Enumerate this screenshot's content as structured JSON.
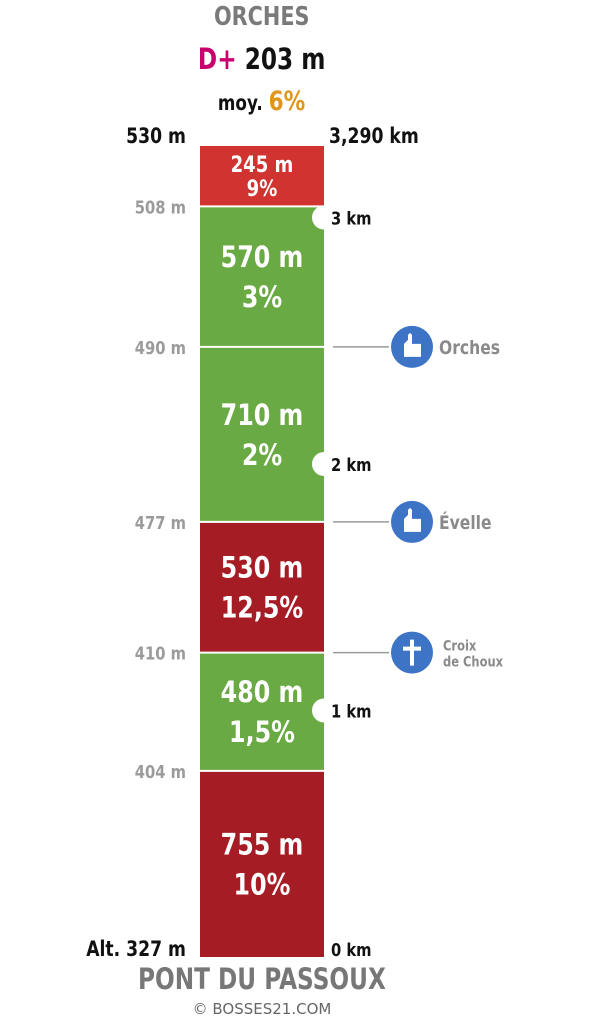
{
  "header": {
    "title": "ORCHES",
    "gain_prefix": "D+",
    "gain_value": "203 m",
    "avg_prefix": "moy.",
    "avg_value": "6%"
  },
  "footer": {
    "start_name": "PONT DU PASSOUX",
    "copyright": "© BOSSES21.COM"
  },
  "colors": {
    "red_top": "#d03330",
    "red": "#a51c24",
    "green": "#6aaa44",
    "poi_blue": "#3d74c6",
    "alt_grey": "#9b9b9b"
  },
  "chart_data": {
    "type": "bar",
    "total_distance_label": "3,290 km",
    "top_altitude_label": "530 m",
    "base_altitude_label": "Alt. 327 m",
    "segments": [
      {
        "length_label": "755 m",
        "grade_label": "10%",
        "length_m": 755,
        "grade_pct": 10,
        "color": "red"
      },
      {
        "length_label": "480 m",
        "grade_label": "1,5%",
        "length_m": 480,
        "grade_pct": 1.5,
        "color": "green"
      },
      {
        "length_label": "530 m",
        "grade_label": "12,5%",
        "length_m": 530,
        "grade_pct": 12.5,
        "color": "red"
      },
      {
        "length_label": "710 m",
        "grade_label": "2%",
        "length_m": 710,
        "grade_pct": 2,
        "color": "green"
      },
      {
        "length_label": "570 m",
        "grade_label": "3%",
        "length_m": 570,
        "grade_pct": 3,
        "color": "green"
      },
      {
        "length_label": "245 m",
        "grade_label": "9%",
        "length_m": 245,
        "grade_pct": 9,
        "color": "red_top"
      }
    ],
    "boundary_altitudes": [
      "404 m",
      "410 m",
      "477 m",
      "490 m",
      "508 m"
    ],
    "km_markers": [
      {
        "label": "0 km",
        "km": 0,
        "style": "plain"
      },
      {
        "label": "1 km",
        "km": 1,
        "style": "notch"
      },
      {
        "label": "2 km",
        "km": 2,
        "style": "notch"
      },
      {
        "label": "3 km",
        "km": 3,
        "style": "notch"
      }
    ],
    "pois": [
      {
        "label": "Croix de Choux",
        "lines": [
          "Croix",
          "de Choux"
        ],
        "km": 1.235,
        "icon": "cross-icon"
      },
      {
        "label": "Évelle",
        "lines": [
          "Évelle"
        ],
        "km": 1.765,
        "icon": "church-icon"
      },
      {
        "label": "Orches",
        "lines": [
          "Orches"
        ],
        "km": 2.475,
        "icon": "church-icon"
      }
    ]
  }
}
